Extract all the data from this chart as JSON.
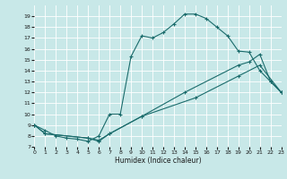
{
  "xlabel": "Humidex (Indice chaleur)",
  "bg_color": "#c8e8e8",
  "grid_color": "#ffffff",
  "line_color": "#1a6b6b",
  "ylim": [
    7,
    20
  ],
  "xlim": [
    0,
    23
  ],
  "yticks": [
    7,
    8,
    9,
    10,
    11,
    12,
    13,
    14,
    15,
    16,
    17,
    18,
    19
  ],
  "xticks": [
    0,
    1,
    2,
    3,
    4,
    5,
    6,
    7,
    8,
    9,
    10,
    11,
    12,
    13,
    14,
    15,
    16,
    17,
    18,
    19,
    20,
    21,
    22,
    23
  ],
  "line1_x": [
    0,
    1,
    2,
    3,
    4,
    5,
    6,
    7,
    8,
    9,
    10,
    11,
    12,
    13,
    14,
    15,
    16,
    17,
    18,
    19,
    20,
    21,
    22,
    23
  ],
  "line1_y": [
    9.0,
    8.5,
    8.0,
    7.8,
    7.7,
    7.5,
    8.0,
    10.0,
    10.0,
    15.3,
    17.2,
    17.0,
    17.5,
    18.3,
    19.2,
    19.2,
    18.8,
    18.0,
    17.2,
    15.8,
    15.7,
    14.0,
    13.0,
    12.0
  ],
  "line2_x": [
    0,
    1,
    5,
    6,
    7,
    10,
    14,
    19,
    20,
    21,
    22,
    23
  ],
  "line2_y": [
    9.0,
    8.2,
    7.8,
    7.6,
    8.2,
    9.8,
    12.0,
    14.5,
    14.8,
    15.5,
    13.0,
    12.0
  ],
  "line3_x": [
    0,
    1,
    5,
    6,
    7,
    10,
    15,
    19,
    21,
    23
  ],
  "line3_y": [
    9.0,
    8.2,
    7.8,
    7.5,
    8.2,
    9.8,
    11.5,
    13.5,
    14.5,
    12.0
  ]
}
